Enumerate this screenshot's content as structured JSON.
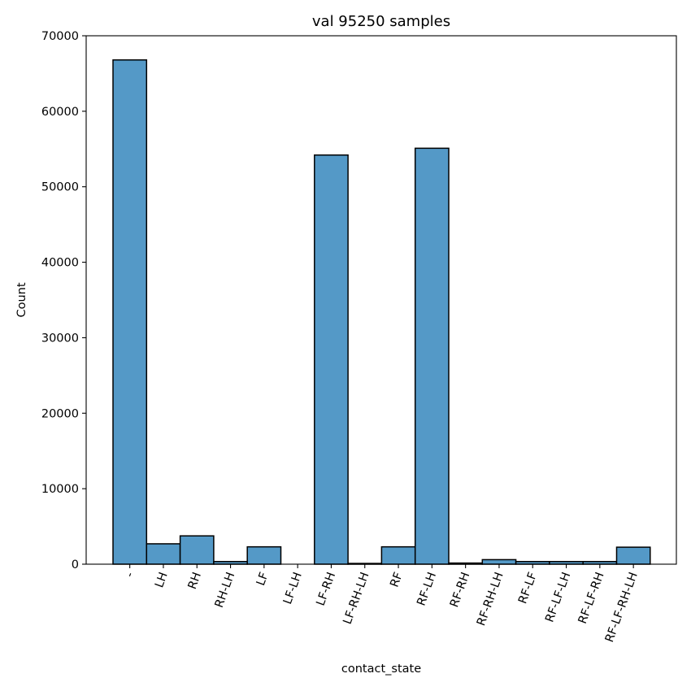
{
  "chart_data": {
    "type": "bar",
    "title": "val 95250 samples",
    "xlabel": "contact_state",
    "ylabel": "Count",
    "ylim": [
      0,
      70000
    ],
    "yticks": [
      0,
      10000,
      20000,
      30000,
      40000,
      50000,
      60000,
      70000
    ],
    "categories": [
      "-",
      "LH",
      "RH",
      "RH-LH",
      "LF",
      "LF-LH",
      "LF-RH",
      "LF-RH-LH",
      "RF",
      "RF-LH",
      "RF-RH",
      "RF-RH-LH",
      "RF-LF",
      "RF-LF-LH",
      "RF-LF-RH",
      "RF-LF-RH-LH"
    ],
    "values": [
      66800,
      2700,
      3750,
      350,
      2300,
      0,
      54200,
      100,
      2300,
      55100,
      150,
      600,
      350,
      350,
      350,
      2250
    ],
    "bar_color": "#5499c7",
    "grid": false
  }
}
